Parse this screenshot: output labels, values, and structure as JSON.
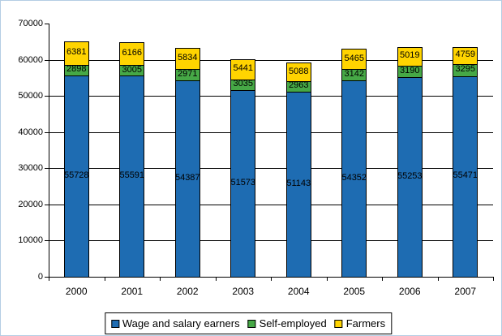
{
  "chart_data": {
    "type": "bar",
    "stacked": true,
    "title": "",
    "xlabel": "",
    "ylabel": "",
    "categories": [
      "2000",
      "2001",
      "2002",
      "2003",
      "2004",
      "2005",
      "2006",
      "2007"
    ],
    "series": [
      {
        "name": "Wage and salary earners",
        "color": "#1e6cb2",
        "values": [
          55728,
          55591,
          54387,
          51573,
          51143,
          54352,
          55253,
          55471
        ]
      },
      {
        "name": "Self-employed",
        "color": "#46a846",
        "values": [
          2898,
          3005,
          2971,
          3035,
          2963,
          3142,
          3190,
          3295
        ]
      },
      {
        "name": "Farmers",
        "color": "#ffd400",
        "values": [
          6381,
          6166,
          5834,
          5441,
          5088,
          5465,
          5019,
          4759
        ]
      }
    ],
    "ylim": [
      0,
      70000
    ],
    "ytick_step": 10000,
    "ytick_labels": [
      "0",
      "10000",
      "20000",
      "30000",
      "40000",
      "50000",
      "60000",
      "70000"
    ],
    "grid": true,
    "data_labels": true,
    "legend_position": "bottom"
  },
  "page": {
    "background": "#ffffff",
    "frame_border_color": "#b4cde4",
    "axis_color": "#000000"
  }
}
